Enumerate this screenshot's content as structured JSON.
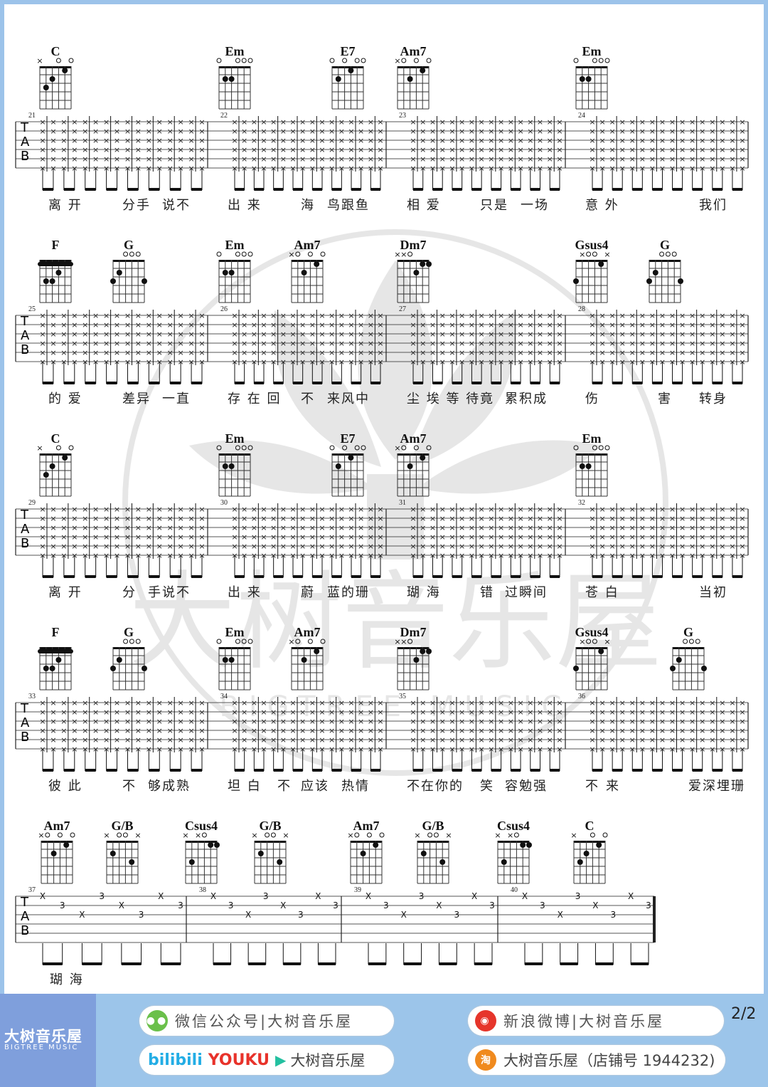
{
  "page_number": "2/2",
  "tab_label": {
    "t": "T",
    "a": "A",
    "b": "B"
  },
  "fingerings": {
    "C": [
      "x",
      3,
      2,
      0,
      1,
      0
    ],
    "Em": [
      0,
      2,
      2,
      0,
      0,
      0
    ],
    "E7": [
      0,
      2,
      0,
      1,
      0,
      0
    ],
    "Am7": [
      "x",
      0,
      2,
      0,
      1,
      0
    ],
    "F": [
      1,
      3,
      3,
      2,
      1,
      1
    ],
    "G": [
      3,
      2,
      0,
      0,
      0,
      3
    ],
    "Dm7": [
      "x",
      "x",
      0,
      2,
      1,
      1
    ],
    "Gsus4": [
      3,
      "x",
      0,
      0,
      1,
      "x"
    ],
    "G/B": [
      "x",
      2,
      0,
      0,
      3,
      "x"
    ],
    "Csus4": [
      "x",
      3,
      "x",
      0,
      1,
      1
    ]
  },
  "systems": [
    {
      "measures": [
        "21",
        "22",
        "23",
        "24"
      ],
      "chords": [
        "C",
        "Em",
        "E7",
        "Am7",
        "Em"
      ],
      "lyrics": [
        "离 开",
        "分手",
        "说不",
        "出 来",
        "海",
        "鸟跟鱼",
        "相 爱",
        "只是",
        "一场",
        "意 外",
        "我们"
      ]
    },
    {
      "measures": [
        "25",
        "26",
        "27",
        "28"
      ],
      "chords": [
        "F",
        "G",
        "Em",
        "Am7",
        "Dm7",
        "Gsus4",
        "G"
      ],
      "lyrics": [
        "的 爱",
        "差异",
        "一直",
        "存 在 回",
        "不",
        "来风中",
        "尘 埃 等 待",
        "竟",
        "累积成",
        "伤",
        "害",
        "转身"
      ]
    },
    {
      "measures": [
        "29",
        "30",
        "31",
        "32"
      ],
      "chords": [
        "C",
        "Em",
        "E7",
        "Am7",
        "Em"
      ],
      "lyrics": [
        "离 开",
        "分",
        "手说不",
        "出 来",
        "蔚",
        "蓝的珊",
        "瑚 海",
        "错",
        "过瞬间",
        "苍 白",
        "当初"
      ]
    },
    {
      "measures": [
        "33",
        "34",
        "35",
        "36"
      ],
      "chords": [
        "F",
        "G",
        "Em",
        "Am7",
        "Dm7",
        "Gsus4",
        "G"
      ],
      "lyrics": [
        "彼 此",
        "不",
        "够成熟",
        "坦 白",
        "不",
        "应该",
        "热情",
        "不在你的",
        "笑",
        "容勉强",
        "不",
        "来",
        "爱深埋珊"
      ]
    },
    {
      "measures": [
        "37",
        "38",
        "39",
        "40"
      ],
      "chords": [
        "Am7",
        "G/B",
        "Csus4",
        "G/B",
        "Am7",
        "G/B",
        "Csus4",
        "C"
      ],
      "lyrics": [
        "瑚 海"
      ],
      "fret_number": "3"
    }
  ],
  "watermark": {
    "cn": "大树音乐屋",
    "en": "BIGTREE MUSIC"
  },
  "footer": {
    "brand_cn": "大树音乐屋",
    "brand_en": "BIGTREE MUSIC",
    "wechat": "微信公众号|大树音乐屋",
    "weibo": "新浪微博|大树音乐屋",
    "video_bilibili": "bilibili",
    "video_youku": "YOUKU",
    "video_name": "大树音乐屋",
    "taobao": "大树音乐屋（店铺号 1944232)",
    "colors": {
      "brand_bg": "#7f9fdc",
      "footer_bg": "#9cc5ea",
      "youku_red": "#e8322a",
      "bilibili_blue": "#23ade5"
    }
  }
}
